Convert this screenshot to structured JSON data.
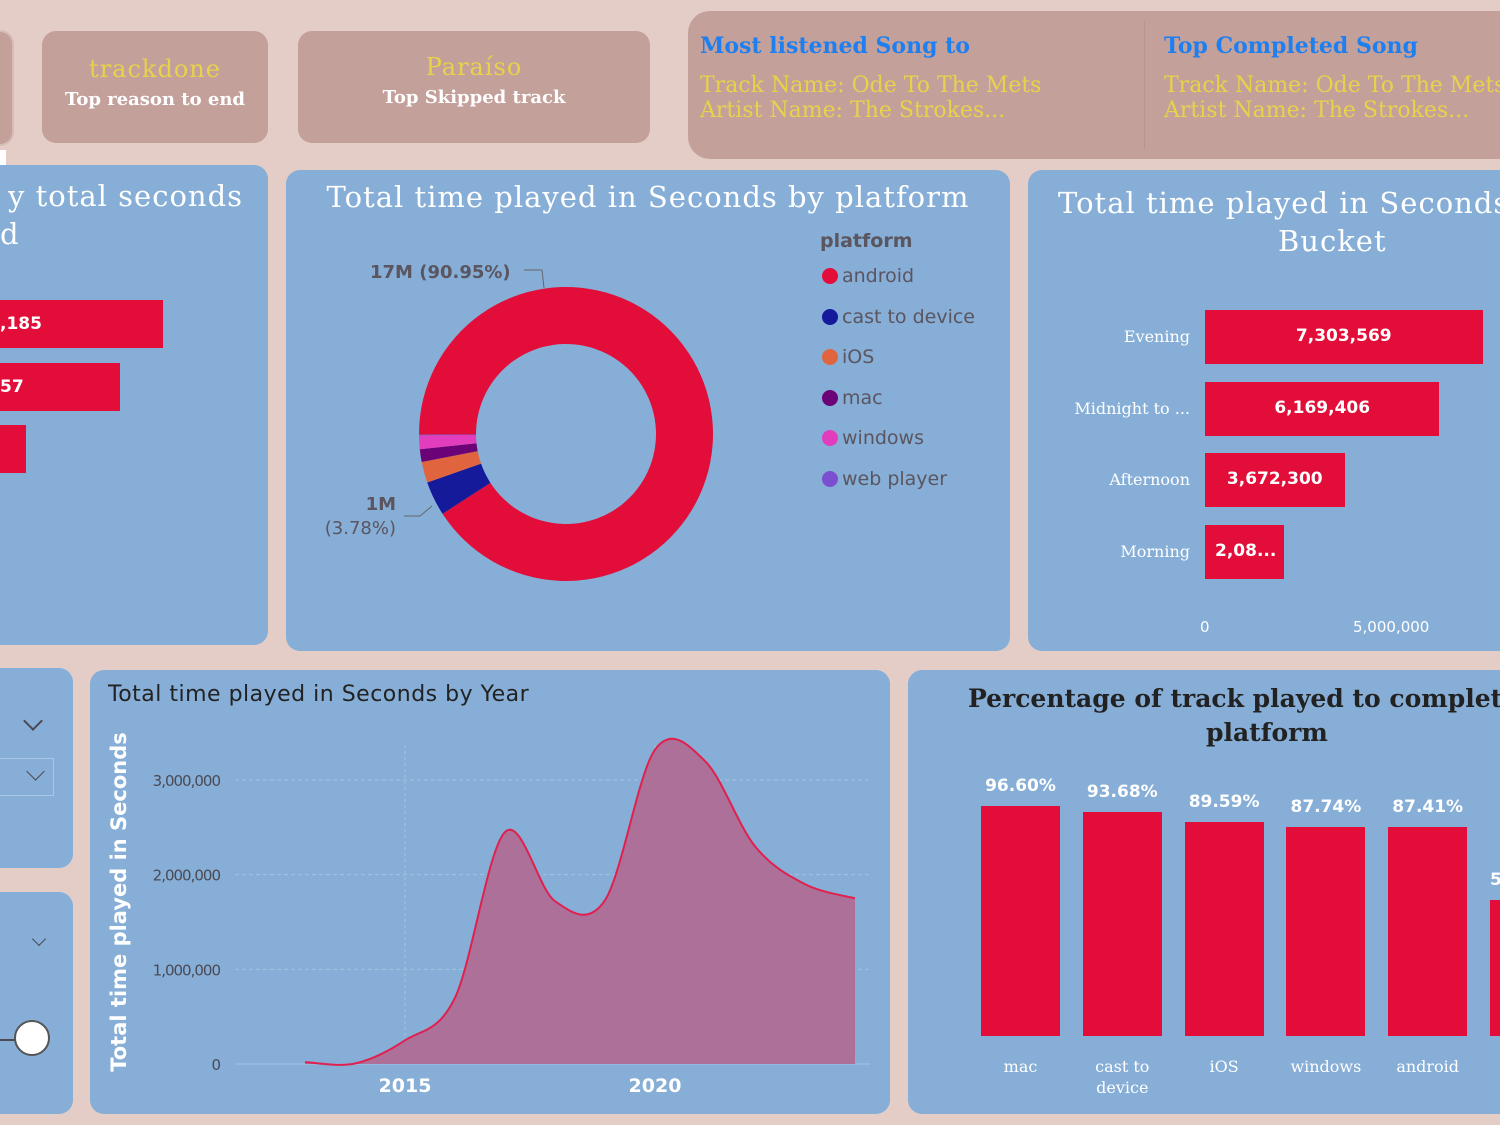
{
  "kpis": [
    {
      "value": "trackdone",
      "label": "Top reason to end"
    },
    {
      "value": "Paraíso",
      "label": "Top Skipped track"
    }
  ],
  "songs": [
    {
      "title": "Most listened Song to",
      "track": "Track Name: Ode To The Mets",
      "artist": "Artist Name: The Strokes..."
    },
    {
      "title": "Top Completed Song",
      "track": "Track Name: Ode To The Mets",
      "artist": "Artist Name: The Strokes..."
    }
  ],
  "left_panel": {
    "title_line1": "y total seconds",
    "title_line2": "d",
    "bar_labels": [
      ",185",
      "57",
      ""
    ]
  },
  "colors": {
    "accent": "#e20e39",
    "panel": "#86aed6",
    "card": "#c4a09b",
    "background": "#e4cdc7"
  },
  "chart_data": [
    {
      "type": "pie",
      "title": "Total time played in Seconds by platform",
      "legend_title": "platform",
      "legend_position": "right",
      "slices": [
        {
          "name": "android",
          "percent": 90.95,
          "color": "#e20e39"
        },
        {
          "name": "cast to device",
          "percent": 3.78,
          "color": "#151a9a"
        },
        {
          "name": "iOS",
          "percent": 2.3,
          "color": "#e0653f"
        },
        {
          "name": "mac",
          "percent": 1.4,
          "color": "#6b0377"
        },
        {
          "name": "windows",
          "percent": 1.5,
          "color": "#e23dbd"
        },
        {
          "name": "web player",
          "percent": 0.07,
          "color": "#7b4fcf"
        }
      ],
      "data_labels": [
        {
          "text": "17M (90.95%)"
        },
        {
          "line1": "1M",
          "line2": "(3.78%)"
        }
      ]
    },
    {
      "type": "bar",
      "orientation": "horizontal",
      "title": "Total time played in Seconds by Bucket",
      "categories": [
        "Evening",
        "Midnight to ...",
        "Afternoon",
        "Morning"
      ],
      "values": [
        7303569,
        6169406,
        3672300,
        2080000
      ],
      "value_labels": [
        "7,303,569",
        "6,169,406",
        "3,672,300",
        "2,08..."
      ],
      "xlim": [
        0,
        7500000
      ],
      "xticks": [
        {
          "value": 0,
          "label": "0"
        },
        {
          "value": 5000000,
          "label": "5,000,000"
        }
      ]
    },
    {
      "type": "area",
      "title": "Total time played in Seconds by Year",
      "xlabel": "",
      "ylabel": "Total time played in Seconds",
      "x": [
        2013,
        2014,
        2015,
        2016,
        2017,
        2018,
        2019,
        2020,
        2021,
        2022,
        2023,
        2024
      ],
      "values": [
        20000,
        5000,
        250000,
        700000,
        2450000,
        1720000,
        1730000,
        3320000,
        3200000,
        2300000,
        1900000,
        1750000
      ],
      "ylim": [
        0,
        3400000
      ],
      "yticks": [
        {
          "value": 0,
          "label": "0"
        },
        {
          "value": 1000000,
          "label": "1,000,000"
        },
        {
          "value": 2000000,
          "label": "2,000,000"
        },
        {
          "value": 3000000,
          "label": "3,000,000"
        }
      ],
      "xticks": [
        {
          "value": 2015,
          "label": "2015"
        },
        {
          "value": 2020,
          "label": "2020"
        }
      ],
      "grid": true
    },
    {
      "type": "bar",
      "title": "Percentage of track played to completion by platform",
      "title_line1": "Percentage of track played to completio",
      "title_line2": "platform",
      "categories": [
        "mac",
        "cast to device",
        "iOS",
        "windows",
        "android",
        ""
      ],
      "category_lines": [
        [
          "mac"
        ],
        [
          "cast to",
          "device"
        ],
        [
          "iOS"
        ],
        [
          "windows"
        ],
        [
          "android"
        ],
        [
          ""
        ]
      ],
      "values": [
        96.6,
        93.68,
        89.59,
        87.74,
        87.41,
        57
      ],
      "value_labels": [
        "96.60%",
        "93.68%",
        "89.59%",
        "87.74%",
        "87.41%",
        "5"
      ],
      "ylim": [
        0,
        100
      ]
    }
  ]
}
